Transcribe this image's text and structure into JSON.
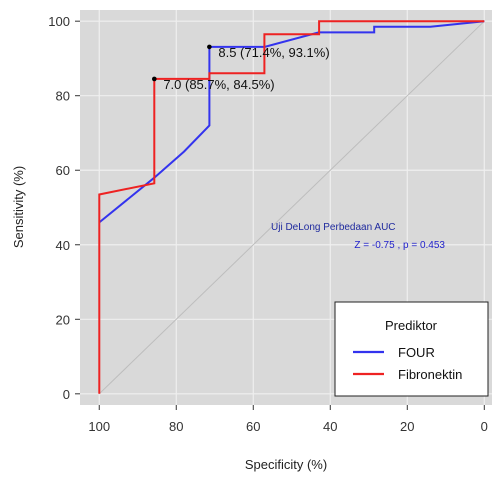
{
  "chart_data": {
    "type": "line",
    "xlabel": "Specificity (%)",
    "ylabel": "Sensitivity (%)",
    "xlim": [
      105,
      -2
    ],
    "ylim": [
      -3,
      103
    ],
    "x_ticks": [
      100,
      80,
      60,
      40,
      20,
      0
    ],
    "y_ticks": [
      0,
      20,
      40,
      60,
      80,
      100
    ],
    "grid": true,
    "background": "#d9d9d9",
    "reference_line": {
      "from": [
        100,
        0
      ],
      "to": [
        0,
        100
      ],
      "color": "#bdbdbd"
    },
    "series": [
      {
        "name": "FOUR",
        "color": "#3333ee",
        "points": [
          [
            100,
            46
          ],
          [
            85.7,
            58
          ],
          [
            78,
            65
          ],
          [
            71.4,
            72
          ],
          [
            71.4,
            93.1
          ],
          [
            57,
            93.1
          ],
          [
            43,
            97
          ],
          [
            28.6,
            97
          ],
          [
            28.6,
            98.5
          ],
          [
            14,
            98.5
          ],
          [
            0,
            100
          ]
        ]
      },
      {
        "name": "Fibronektin",
        "color": "#ee2222",
        "points": [
          [
            100,
            0
          ],
          [
            100,
            53.5
          ],
          [
            85.7,
            56.5
          ],
          [
            85.7,
            84.5
          ],
          [
            71.4,
            84.5
          ],
          [
            71.4,
            86
          ],
          [
            57.1,
            86
          ],
          [
            57.1,
            96.5
          ],
          [
            42.9,
            96.5
          ],
          [
            42.9,
            100
          ],
          [
            0,
            100
          ]
        ]
      }
    ],
    "annotations": [
      {
        "text": "8.5 (71.4%, 93.1%)",
        "x": 71.4,
        "y": 93.1
      },
      {
        "text": "7.0 (85.7%, 84.5%)",
        "x": 85.7,
        "y": 84.5
      }
    ],
    "test": {
      "title": "Uji DeLong Perbedaan AUC",
      "value": "Z = -0.75 , p = 0.453"
    },
    "legend": {
      "title": "Prediktor",
      "placement": "bottom-right",
      "entries": [
        "FOUR",
        "Fibronektin"
      ]
    }
  }
}
